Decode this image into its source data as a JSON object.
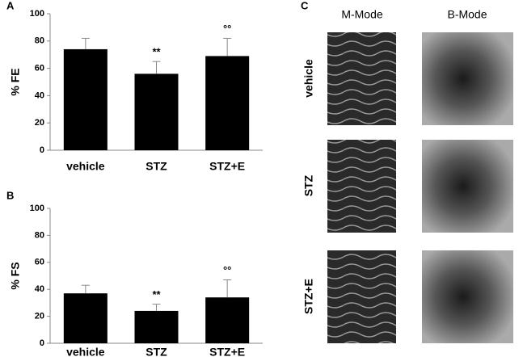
{
  "chart_data": [
    {
      "type": "bar",
      "panel": "A",
      "y_label": "% FE",
      "categories": [
        "vehicle",
        "STZ",
        "STZ+E"
      ],
      "values": [
        74,
        56,
        69
      ],
      "errors": [
        8,
        9,
        13
      ],
      "value_annotations": [
        null,
        "**",
        "°°"
      ],
      "color": "#000000",
      "ylim": [
        0,
        100
      ],
      "yticks": [
        0,
        20,
        40,
        60,
        80,
        100
      ],
      "grid": false
    },
    {
      "type": "bar",
      "panel": "B",
      "y_label": "% FS",
      "categories": [
        "vehicle",
        "STZ",
        "STZ+E"
      ],
      "values": [
        37,
        24,
        34
      ],
      "errors": [
        6,
        5,
        13
      ],
      "value_annotations": [
        null,
        "**",
        "°°"
      ],
      "color": "#000000",
      "ylim": [
        0,
        100
      ],
      "yticks": [
        0,
        20,
        40,
        60,
        80,
        100
      ],
      "grid": false
    }
  ],
  "panel_c": {
    "label": "C",
    "columns": [
      "M-Mode",
      "B-Mode"
    ],
    "rows": [
      "vehicle",
      "STZ",
      "STZ+E"
    ]
  }
}
